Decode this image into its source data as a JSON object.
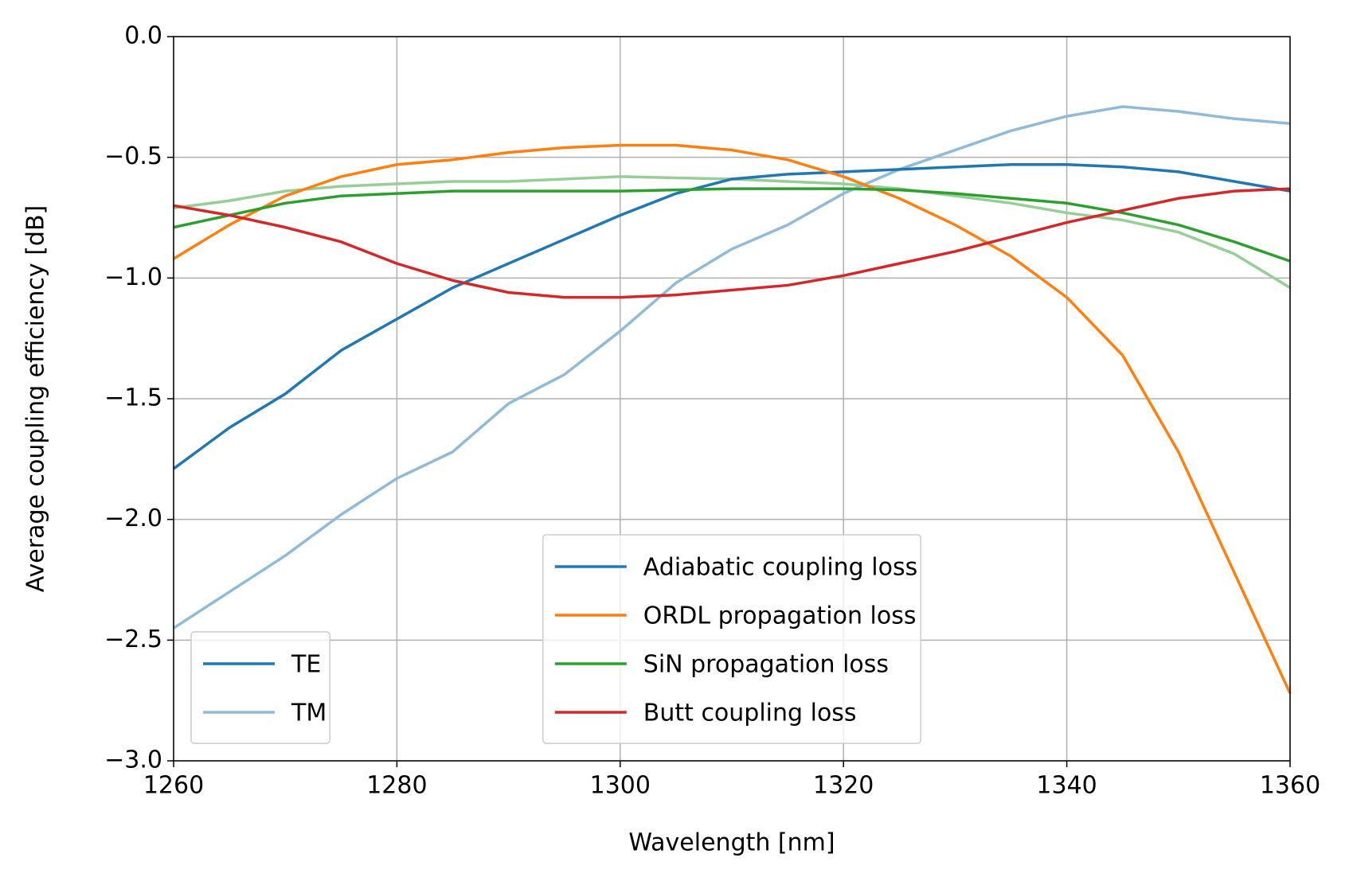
{
  "chart_data": {
    "type": "line",
    "xlabel": "Wavelength [nm]",
    "ylabel": "Average coupling efficiency [dB]",
    "x": [
      1260,
      1265,
      1270,
      1275,
      1280,
      1285,
      1290,
      1295,
      1300,
      1305,
      1310,
      1315,
      1320,
      1325,
      1330,
      1335,
      1340,
      1345,
      1350,
      1355,
      1360
    ],
    "series": [
      {
        "color": "#95cf95",
        "values": [
          -0.71,
          -0.68,
          -0.64,
          -0.62,
          -0.61,
          -0.6,
          -0.6,
          -0.59,
          -0.58,
          -0.585,
          -0.59,
          -0.6,
          -0.61,
          -0.63,
          -0.66,
          -0.69,
          -0.73,
          -0.76,
          -0.81,
          -0.9,
          -1.04
        ]
      },
      {
        "color": "#8fbbd9",
        "values": [
          -2.45,
          -2.3,
          -2.15,
          -1.98,
          -1.83,
          -1.72,
          -1.52,
          -1.4,
          -1.22,
          -1.02,
          -0.88,
          -0.78,
          -0.65,
          -0.55,
          -0.47,
          -0.39,
          -0.33,
          -0.29,
          -0.31,
          -0.34,
          -0.36
        ]
      },
      {
        "color": "#1f77b4",
        "values": [
          -1.79,
          -1.62,
          -1.48,
          -1.3,
          -1.17,
          -1.04,
          -0.94,
          -0.84,
          -0.74,
          -0.65,
          -0.59,
          -0.57,
          -0.56,
          -0.55,
          -0.54,
          -0.53,
          -0.53,
          -0.54,
          -0.56,
          -0.6,
          -0.64
        ]
      },
      {
        "color": "#ff7f0e",
        "values": [
          -0.92,
          -0.78,
          -0.66,
          -0.58,
          -0.53,
          -0.51,
          -0.48,
          -0.46,
          -0.45,
          -0.45,
          -0.47,
          -0.51,
          -0.58,
          -0.67,
          -0.78,
          -0.91,
          -1.08,
          -1.32,
          -1.72,
          -2.22,
          -2.72
        ]
      },
      {
        "color": "#2ca02c",
        "values": [
          -0.79,
          -0.74,
          -0.69,
          -0.66,
          -0.65,
          -0.64,
          -0.64,
          -0.64,
          -0.64,
          -0.635,
          -0.63,
          -0.63,
          -0.63,
          -0.635,
          -0.65,
          -0.67,
          -0.69,
          -0.73,
          -0.78,
          -0.85,
          -0.93
        ]
      },
      {
        "color": "#d62728",
        "values": [
          -0.7,
          -0.74,
          -0.79,
          -0.85,
          -0.94,
          -1.01,
          -1.06,
          -1.08,
          -1.08,
          -1.07,
          -1.05,
          -1.03,
          -0.99,
          -0.94,
          -0.89,
          -0.83,
          -0.77,
          -0.72,
          -0.67,
          -0.64,
          -0.63
        ]
      }
    ],
    "legends": [
      {
        "loc": "lower left",
        "entries": [
          {
            "label": "TE",
            "color": "#1f77b4"
          },
          {
            "label": "TM",
            "color": "#8fbbd9"
          }
        ]
      },
      {
        "loc": "lower center",
        "entries": [
          {
            "label": "Adiabatic coupling loss",
            "color": "#1f77b4"
          },
          {
            "label": "ORDL propagation loss",
            "color": "#ff7f0e"
          },
          {
            "label": "SiN propagation loss",
            "color": "#2ca02c"
          },
          {
            "label": "Butt coupling loss",
            "color": "#d62728"
          }
        ]
      }
    ],
    "xlim": [
      1260,
      1360
    ],
    "xticks": [
      1260,
      1280,
      1300,
      1320,
      1340,
      1360
    ],
    "ylim": [
      -3,
      0
    ],
    "yticks": [
      {
        "value": 0,
        "label": "0.0"
      },
      {
        "value": -0.5,
        "label": "−0.5"
      },
      {
        "value": -1,
        "label": "−1.0"
      },
      {
        "value": -1.5,
        "label": "−1.5"
      },
      {
        "value": -2,
        "label": "−2.0"
      },
      {
        "value": -2.5,
        "label": "−2.5"
      },
      {
        "value": -3,
        "label": "−3.0"
      }
    ],
    "grid": true
  }
}
